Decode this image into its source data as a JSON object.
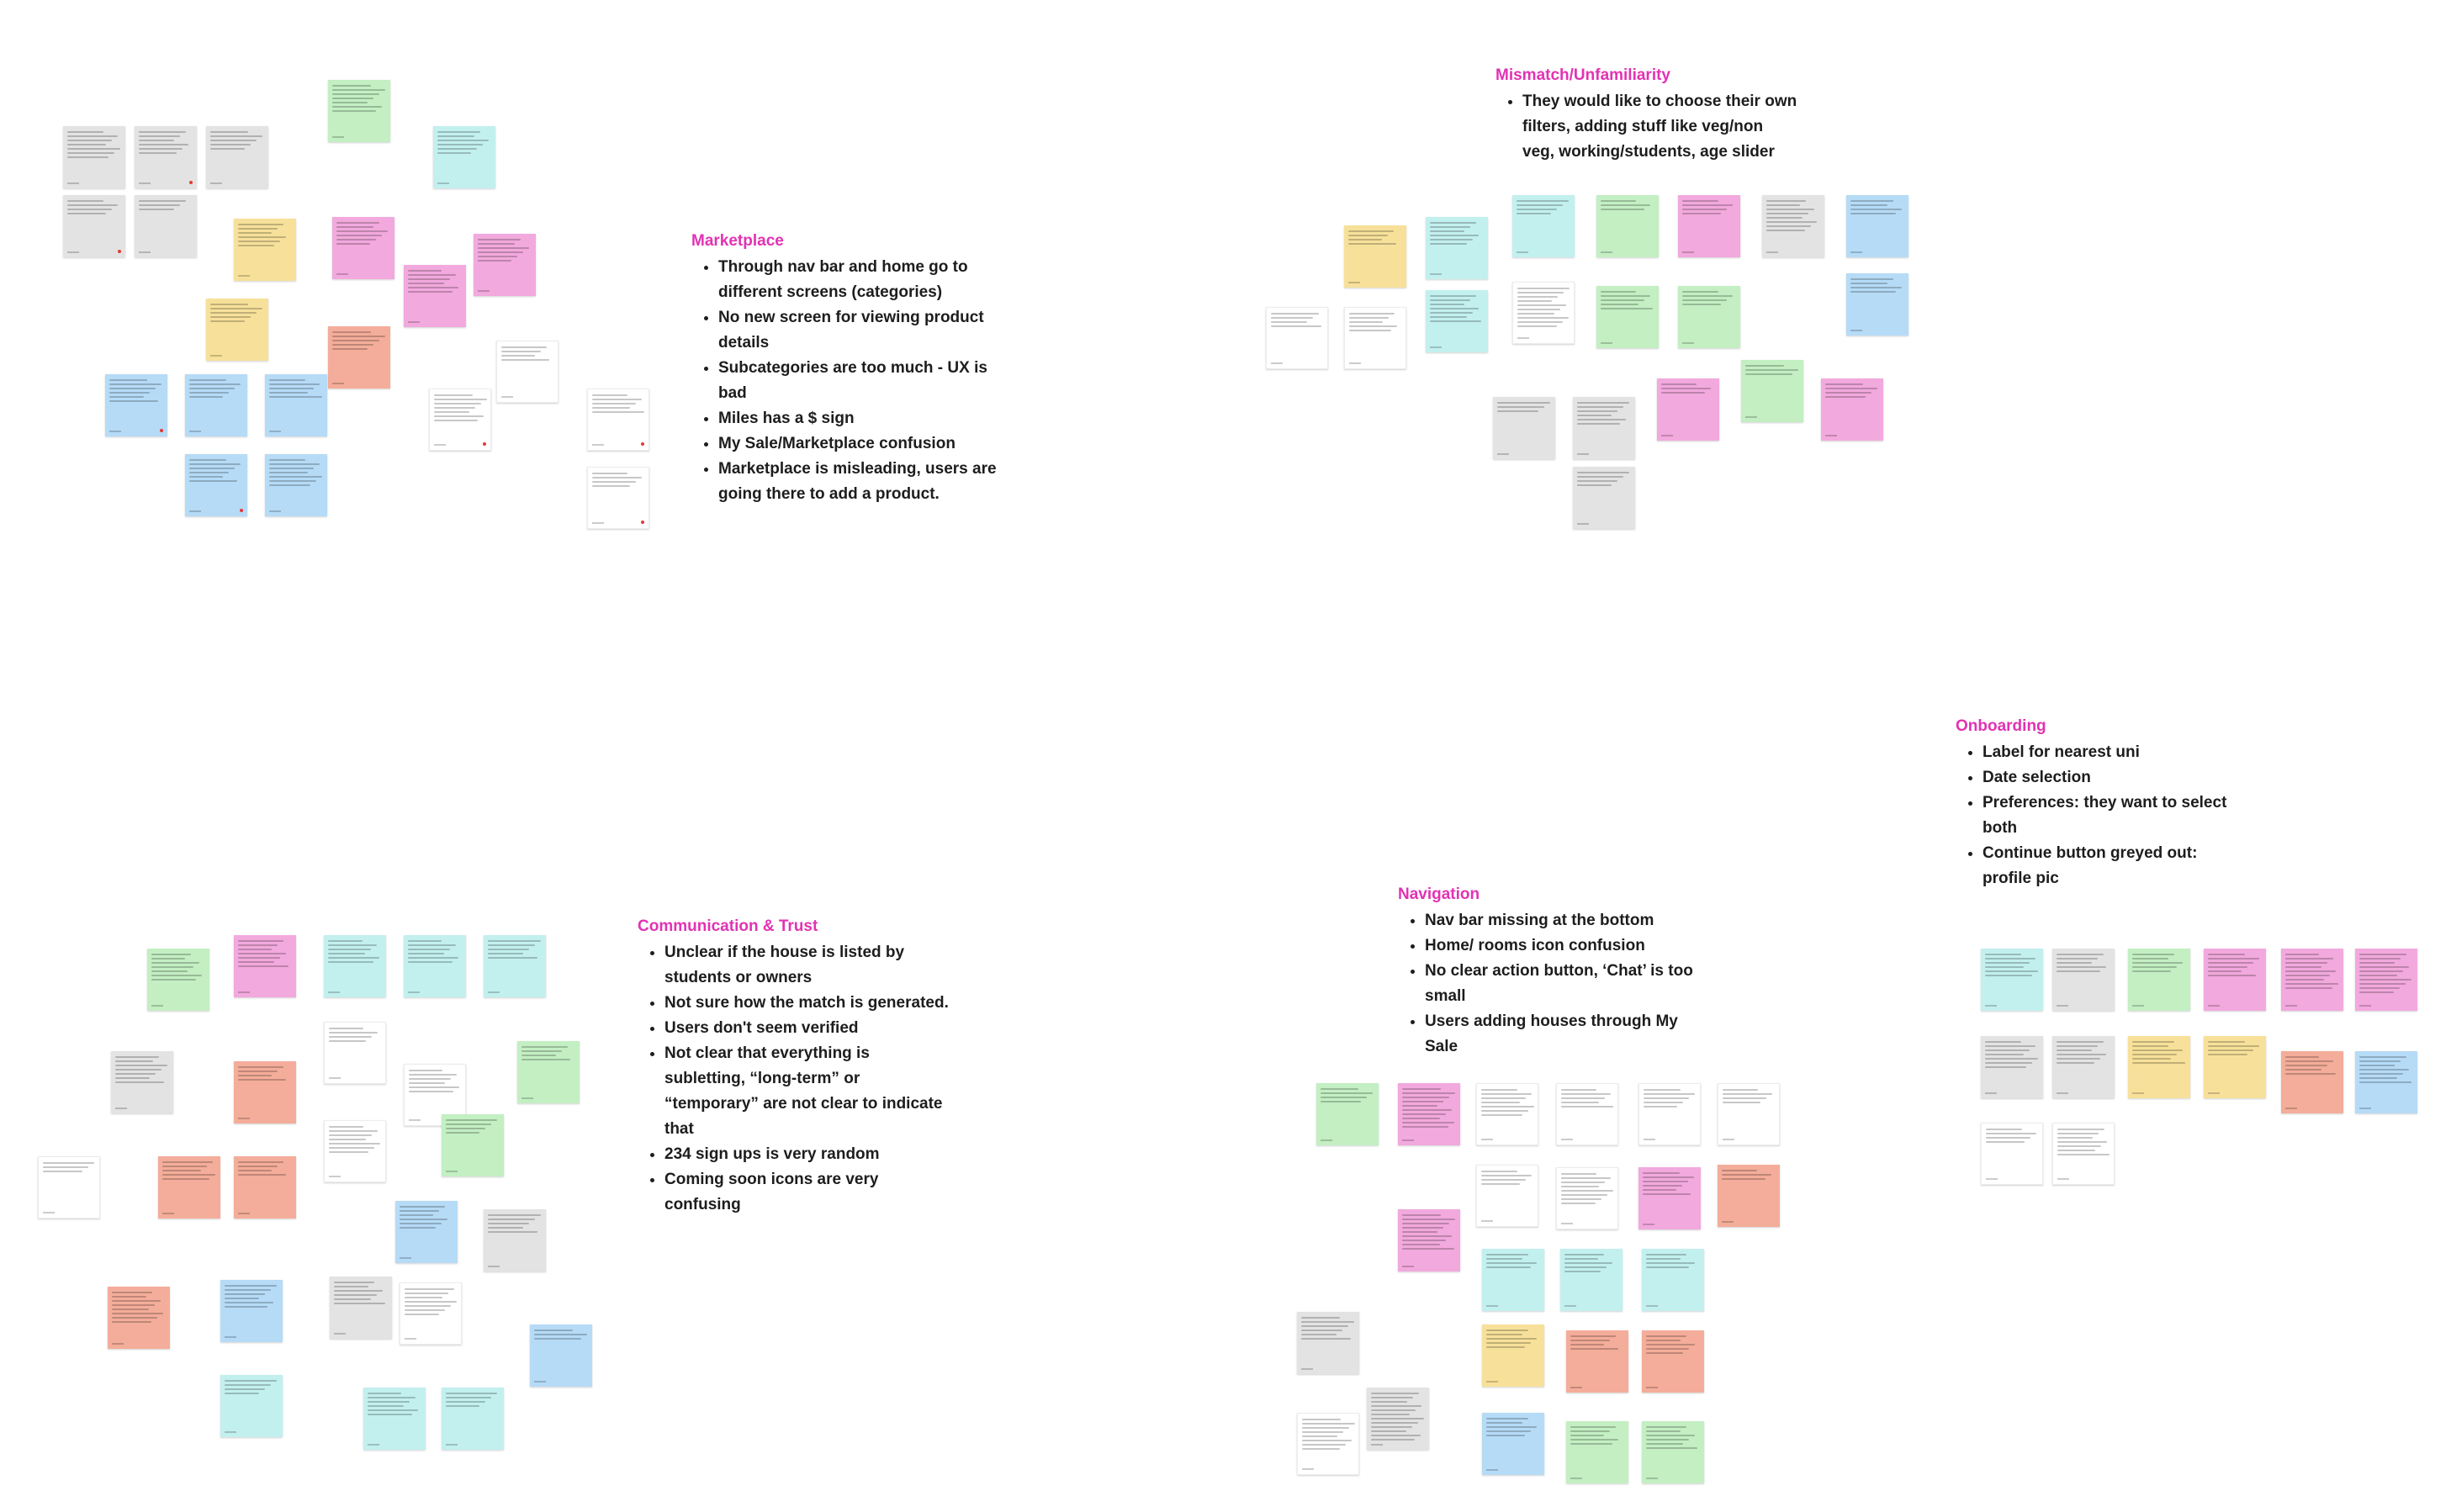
{
  "colors": {
    "heading": "#e232b3",
    "sticky_gray": "#e3e3e3",
    "sticky_green": "#c3efc3",
    "sticky_cyan": "#c2f0ef",
    "sticky_yellow": "#f7e19a",
    "sticky_pink": "#f2a9dd",
    "sticky_blue": "#b6dbf7",
    "sticky_salmon": "#f4ad9a",
    "sticky_white": "#ffffff"
  },
  "clusters": {
    "marketplace": {
      "title": "Marketplace",
      "points": [
        "Through nav bar and home go to different screens (categories)",
        "No new screen for viewing product details",
        "Subcategories are too much - UX is bad",
        "Miles has a $ sign",
        "My Sale/Marketplace confusion",
        "Marketplace is misleading, users are going there to add a product."
      ]
    },
    "mismatch": {
      "title": "Mismatch/Unfamiliarity",
      "points": [
        "They would like to choose their own filters, adding stuff like veg/non veg, working/students, age slider"
      ]
    },
    "onboarding": {
      "title": "Onboarding",
      "points": [
        "Label for nearest uni",
        "Date selection",
        "Preferences: they want to select both",
        "Continue button greyed out: profile pic"
      ]
    },
    "communication": {
      "title": "Communication & Trust",
      "points": [
        "Unclear if the house is listed by students or owners",
        "Not sure how the match is generated.",
        "Users don't seem verified",
        "Not clear that everything is subletting, “long-term” or “temporary” are not clear to indicate that",
        "234 sign ups is very random",
        "Coming soon icons are very confusing"
      ]
    },
    "navigation": {
      "title": "Navigation",
      "points": [
        "Nav bar missing at the bottom",
        "Home/ rooms icon confusion",
        "No clear action button, ‘Chat’ is too small",
        "Users adding houses through My Sale"
      ]
    }
  }
}
